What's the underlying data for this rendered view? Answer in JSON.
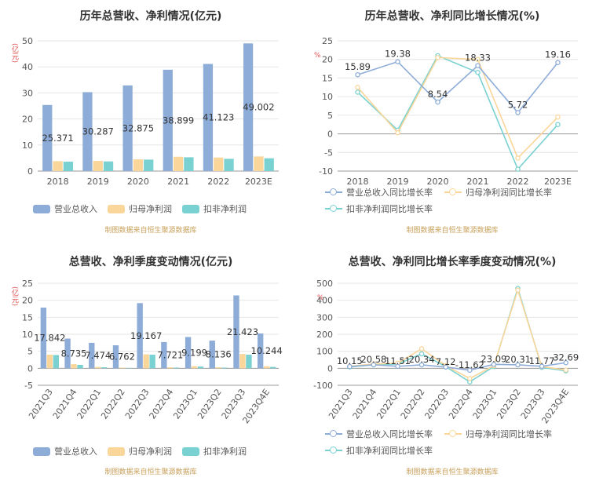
{
  "colors": {
    "revenue": "#8eacd8",
    "net": "#fad69a",
    "deducted": "#7ad1d1",
    "source": "#c8a05a",
    "unit": "#e05050"
  },
  "source_text": "制图数据来自恒生聚源数据库",
  "chart_data": [
    {
      "id": "annual_values",
      "type": "bar",
      "title": "历年总营收、净利情况(亿元)",
      "ylabel": "亿元",
      "ylim": [
        0,
        50
      ],
      "yticks": [
        0,
        10,
        20,
        30,
        40,
        50
      ],
      "categories": [
        "2018",
        "2019",
        "2020",
        "2021",
        "2022",
        "2023E"
      ],
      "series": [
        {
          "name": "营业总收入",
          "color": "#8eacd8",
          "values": [
            25.371,
            30.287,
            32.875,
            38.899,
            41.123,
            49.002
          ],
          "labels": [
            "25.371",
            "30.287",
            "32.875",
            "38.899",
            "41.123",
            "49.002"
          ]
        },
        {
          "name": "归母净利润",
          "color": "#fad69a",
          "values": [
            3.8,
            3.9,
            4.5,
            5.5,
            5.2,
            5.6
          ]
        },
        {
          "name": "扣非净利润",
          "color": "#7ad1d1",
          "values": [
            3.6,
            3.7,
            4.4,
            5.3,
            4.7,
            4.9
          ]
        }
      ]
    },
    {
      "id": "annual_growth",
      "type": "line",
      "title": "历年总营收、净利同比增长情况(%)",
      "ylabel": "%",
      "ylim": [
        -10,
        25
      ],
      "yticks": [
        -10,
        -5,
        0,
        5,
        10,
        15,
        20,
        25
      ],
      "categories": [
        "2018",
        "2019",
        "2020",
        "2021",
        "2022",
        "2023E"
      ],
      "series": [
        {
          "name": "营业总收入同比增长率",
          "color": "#8eacd8",
          "values": [
            15.89,
            19.38,
            8.54,
            18.33,
            5.72,
            19.16
          ],
          "labels": [
            "15.89",
            "19.38",
            "8.54",
            "18.33",
            "5.72",
            "19.16"
          ]
        },
        {
          "name": "归母净利润同比增长率",
          "color": "#fad69a",
          "values": [
            12.5,
            0.3,
            20.5,
            20.0,
            -6.5,
            4.5
          ]
        },
        {
          "name": "扣非净利润同比增长率",
          "color": "#7ad1d1",
          "values": [
            11.2,
            1.0,
            21.0,
            16.5,
            -9.5,
            2.5
          ]
        }
      ]
    },
    {
      "id": "quarterly_values",
      "type": "bar",
      "title": "总营收、净利季度变动情况(亿元)",
      "ylabel": "亿元",
      "ylim": [
        -5,
        25
      ],
      "yticks": [
        -5,
        0,
        5,
        10,
        15,
        20,
        25
      ],
      "categories": [
        "2021Q3",
        "2021Q4",
        "2022Q1",
        "2022Q2",
        "2022Q3",
        "2022Q4",
        "2023Q1",
        "2023Q2",
        "2023Q3",
        "2023Q4E"
      ],
      "series": [
        {
          "name": "营业总收入",
          "color": "#8eacd8",
          "values": [
            17.842,
            8.735,
            7.474,
            6.762,
            19.167,
            7.721,
            9.199,
            8.136,
            21.423,
            10.244
          ],
          "labels": [
            "17.842",
            "8.735",
            "7.474",
            "6.762",
            "19.167",
            "7.721",
            "9.199",
            "8.136",
            "21.423",
            "10.244"
          ]
        },
        {
          "name": "归母净利润",
          "color": "#fad69a",
          "values": [
            4.0,
            1.2,
            0.4,
            0.2,
            4.1,
            0.3,
            0.6,
            0.3,
            4.2,
            0.6
          ]
        },
        {
          "name": "扣非净利润",
          "color": "#7ad1d1",
          "values": [
            3.9,
            1.0,
            0.3,
            0.1,
            4.0,
            0.2,
            0.5,
            0.2,
            4.0,
            0.4
          ]
        }
      ]
    },
    {
      "id": "quarterly_growth",
      "type": "line",
      "title": "总营收、净利同比增长率季度变动情况(%)",
      "ylabel": "%",
      "ylim": [
        -100,
        500
      ],
      "yticks": [
        -100,
        0,
        100,
        200,
        300,
        400,
        500
      ],
      "categories": [
        "2021Q3",
        "2021Q4",
        "2022Q1",
        "2022Q2",
        "2022Q3",
        "2022Q4",
        "2023Q1",
        "2023Q2",
        "2023Q3",
        "2023Q4E"
      ],
      "series": [
        {
          "name": "营业总收入同比增长率",
          "color": "#8eacd8",
          "values": [
            10.15,
            20.58,
            11.51,
            20.34,
            7.12,
            -11.62,
            23.09,
            20.31,
            11.77,
            32.69
          ],
          "labels": [
            "10.15",
            "20.58",
            "11.51",
            "20.34",
            "7.12",
            "-11.62",
            "23.09",
            "20.31",
            "11.77",
            "32.69"
          ]
        },
        {
          "name": "归母净利润同比增长率",
          "color": "#fad69a",
          "values": [
            12,
            25,
            30,
            115,
            15,
            -60,
            15,
            460,
            10,
            -10
          ]
        },
        {
          "name": "扣非净利润同比增长率",
          "color": "#7ad1d1",
          "values": [
            8,
            20,
            25,
            85,
            10,
            -80,
            10,
            470,
            5,
            -15
          ]
        }
      ]
    }
  ]
}
